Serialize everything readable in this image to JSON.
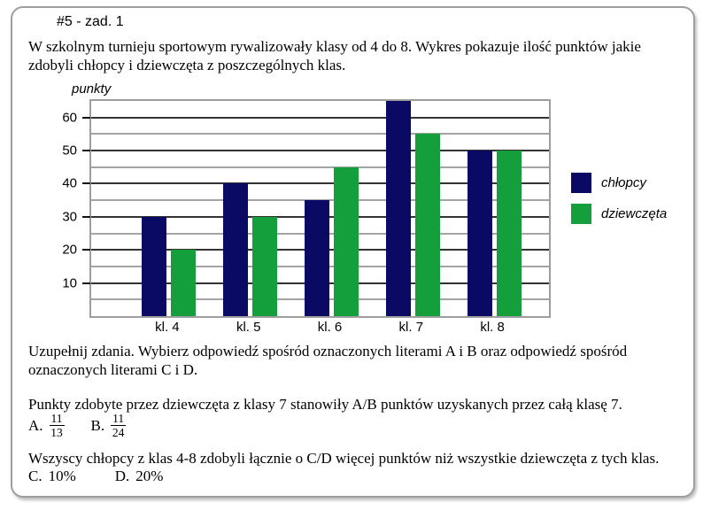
{
  "page": {
    "title": "#5 - zad. 1"
  },
  "intro": {
    "text": "W szkolnym turnieju sportowym rywalizowały klasy od 4 do 8. Wykres pokazuje ilość punktów jakie zdobyli chłopcy i dziewczęta z poszczególnych klas."
  },
  "chart_data": {
    "type": "bar",
    "title": "",
    "ylabel": "punkty",
    "xlabel": "",
    "categories": [
      "kl. 4",
      "kl. 5",
      "kl. 6",
      "kl. 7",
      "kl. 8"
    ],
    "series": [
      {
        "name": "chłopcy",
        "color": "#0a0a64",
        "values": [
          30,
          40,
          35,
          65,
          50
        ]
      },
      {
        "name": "dziewczęta",
        "color": "#159f3c",
        "values": [
          20,
          30,
          45,
          55,
          50
        ]
      }
    ],
    "ylim": [
      0,
      65
    ],
    "grid": true,
    "grid_step": 5,
    "major_tick_step": 10,
    "tick_labels": [
      10,
      20,
      30,
      40,
      50,
      60
    ],
    "legend_position": "right"
  },
  "questions": {
    "instruction": "Uzupełnij zdania. Wybierz odpowiedź spośród oznaczonych literami A i B oraz odpowiedź spośród oznaczonych literami C i D.",
    "q1": "Punkty zdobyte przez dziewczęta z klasy 7 stanowiły A/B punktów uzyskanych przez całą klasę 7.",
    "options_ab": [
      {
        "label": "A.",
        "numerator": "11",
        "denominator": "13"
      },
      {
        "label": "B.",
        "numerator": "11",
        "denominator": "24"
      }
    ],
    "q2": "Wszyscy chłopcy z klas 4-8 zdobyli łącznie o C/D więcej punktów niż wszystkie dziewczęta z tych klas.",
    "options_cd": [
      {
        "label": "C.",
        "value": "10%"
      },
      {
        "label": "D.",
        "value": "20%"
      }
    ]
  }
}
